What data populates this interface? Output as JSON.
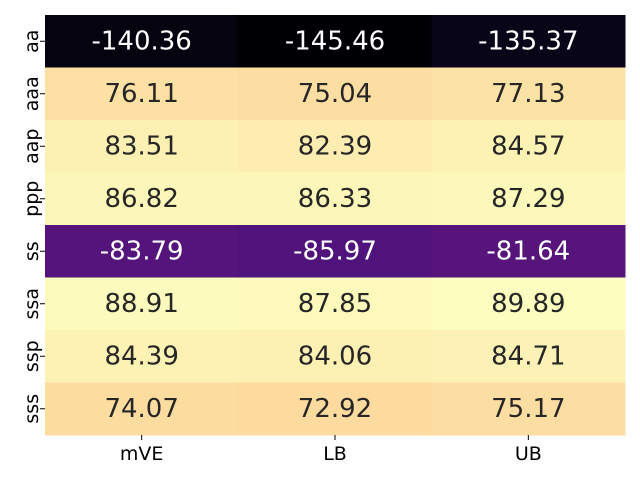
{
  "chart_data": {
    "type": "heatmap",
    "x_labels": [
      "mVE",
      "LB",
      "UB"
    ],
    "y_labels": [
      "aa",
      "aaa",
      "aap",
      "ppp",
      "ss",
      "ssa",
      "ssp",
      "sss"
    ],
    "values": [
      [
        -140.36,
        -145.46,
        -135.37
      ],
      [
        76.11,
        75.04,
        77.13
      ],
      [
        83.51,
        82.39,
        84.57
      ],
      [
        86.82,
        86.33,
        87.29
      ],
      [
        -83.79,
        -85.97,
        -81.64
      ],
      [
        88.91,
        87.85,
        89.89
      ],
      [
        84.39,
        84.06,
        84.71
      ],
      [
        74.07,
        72.92,
        75.17
      ]
    ],
    "cell_labels": [
      [
        "-140.36",
        "-145.46",
        "-135.37"
      ],
      [
        "76.11",
        "75.04",
        "77.13"
      ],
      [
        "83.51",
        "82.39",
        "84.57"
      ],
      [
        "86.82",
        "86.33",
        "87.29"
      ],
      [
        "-83.79",
        "-85.97",
        "-81.64"
      ],
      [
        "88.91",
        "87.85",
        "89.89"
      ],
      [
        "84.39",
        "84.06",
        "84.71"
      ],
      [
        "74.07",
        "72.92",
        "75.17"
      ]
    ],
    "colormap": "magma",
    "colorbar": false,
    "text_colors": {
      "dark_cell": "#ffffff",
      "light_cell": "#262626"
    }
  }
}
